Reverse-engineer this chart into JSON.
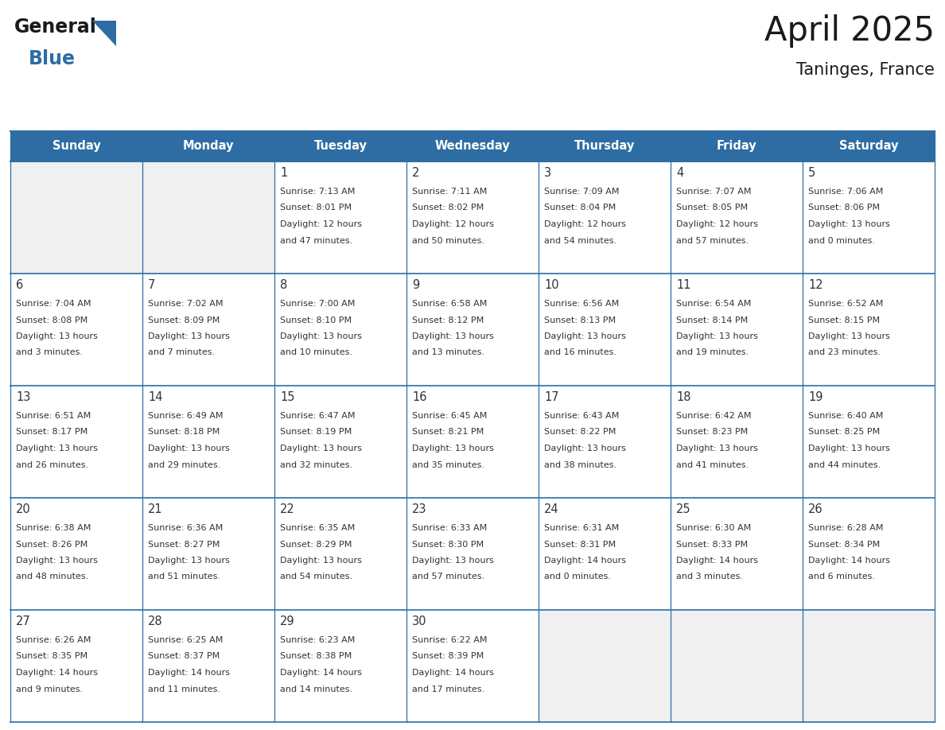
{
  "title": "April 2025",
  "subtitle": "Taninges, France",
  "header_bg_color": "#2E6DA4",
  "header_text_color": "#FFFFFF",
  "cell_bg_color": "#FFFFFF",
  "cell_bg_empty": "#F0F0F0",
  "grid_line_color": "#2E6DA4",
  "text_color": "#333333",
  "days_of_week": [
    "Sunday",
    "Monday",
    "Tuesday",
    "Wednesday",
    "Thursday",
    "Friday",
    "Saturday"
  ],
  "weeks": [
    [
      {
        "day": "",
        "sunrise": "",
        "sunset": "",
        "daylight": ""
      },
      {
        "day": "",
        "sunrise": "",
        "sunset": "",
        "daylight": ""
      },
      {
        "day": "1",
        "sunrise": "7:13 AM",
        "sunset": "8:01 PM",
        "daylight": "12 hours\nand 47 minutes."
      },
      {
        "day": "2",
        "sunrise": "7:11 AM",
        "sunset": "8:02 PM",
        "daylight": "12 hours\nand 50 minutes."
      },
      {
        "day": "3",
        "sunrise": "7:09 AM",
        "sunset": "8:04 PM",
        "daylight": "12 hours\nand 54 minutes."
      },
      {
        "day": "4",
        "sunrise": "7:07 AM",
        "sunset": "8:05 PM",
        "daylight": "12 hours\nand 57 minutes."
      },
      {
        "day": "5",
        "sunrise": "7:06 AM",
        "sunset": "8:06 PM",
        "daylight": "13 hours\nand 0 minutes."
      }
    ],
    [
      {
        "day": "6",
        "sunrise": "7:04 AM",
        "sunset": "8:08 PM",
        "daylight": "13 hours\nand 3 minutes."
      },
      {
        "day": "7",
        "sunrise": "7:02 AM",
        "sunset": "8:09 PM",
        "daylight": "13 hours\nand 7 minutes."
      },
      {
        "day": "8",
        "sunrise": "7:00 AM",
        "sunset": "8:10 PM",
        "daylight": "13 hours\nand 10 minutes."
      },
      {
        "day": "9",
        "sunrise": "6:58 AM",
        "sunset": "8:12 PM",
        "daylight": "13 hours\nand 13 minutes."
      },
      {
        "day": "10",
        "sunrise": "6:56 AM",
        "sunset": "8:13 PM",
        "daylight": "13 hours\nand 16 minutes."
      },
      {
        "day": "11",
        "sunrise": "6:54 AM",
        "sunset": "8:14 PM",
        "daylight": "13 hours\nand 19 minutes."
      },
      {
        "day": "12",
        "sunrise": "6:52 AM",
        "sunset": "8:15 PM",
        "daylight": "13 hours\nand 23 minutes."
      }
    ],
    [
      {
        "day": "13",
        "sunrise": "6:51 AM",
        "sunset": "8:17 PM",
        "daylight": "13 hours\nand 26 minutes."
      },
      {
        "day": "14",
        "sunrise": "6:49 AM",
        "sunset": "8:18 PM",
        "daylight": "13 hours\nand 29 minutes."
      },
      {
        "day": "15",
        "sunrise": "6:47 AM",
        "sunset": "8:19 PM",
        "daylight": "13 hours\nand 32 minutes."
      },
      {
        "day": "16",
        "sunrise": "6:45 AM",
        "sunset": "8:21 PM",
        "daylight": "13 hours\nand 35 minutes."
      },
      {
        "day": "17",
        "sunrise": "6:43 AM",
        "sunset": "8:22 PM",
        "daylight": "13 hours\nand 38 minutes."
      },
      {
        "day": "18",
        "sunrise": "6:42 AM",
        "sunset": "8:23 PM",
        "daylight": "13 hours\nand 41 minutes."
      },
      {
        "day": "19",
        "sunrise": "6:40 AM",
        "sunset": "8:25 PM",
        "daylight": "13 hours\nand 44 minutes."
      }
    ],
    [
      {
        "day": "20",
        "sunrise": "6:38 AM",
        "sunset": "8:26 PM",
        "daylight": "13 hours\nand 48 minutes."
      },
      {
        "day": "21",
        "sunrise": "6:36 AM",
        "sunset": "8:27 PM",
        "daylight": "13 hours\nand 51 minutes."
      },
      {
        "day": "22",
        "sunrise": "6:35 AM",
        "sunset": "8:29 PM",
        "daylight": "13 hours\nand 54 minutes."
      },
      {
        "day": "23",
        "sunrise": "6:33 AM",
        "sunset": "8:30 PM",
        "daylight": "13 hours\nand 57 minutes."
      },
      {
        "day": "24",
        "sunrise": "6:31 AM",
        "sunset": "8:31 PM",
        "daylight": "14 hours\nand 0 minutes."
      },
      {
        "day": "25",
        "sunrise": "6:30 AM",
        "sunset": "8:33 PM",
        "daylight": "14 hours\nand 3 minutes."
      },
      {
        "day": "26",
        "sunrise": "6:28 AM",
        "sunset": "8:34 PM",
        "daylight": "14 hours\nand 6 minutes."
      }
    ],
    [
      {
        "day": "27",
        "sunrise": "6:26 AM",
        "sunset": "8:35 PM",
        "daylight": "14 hours\nand 9 minutes."
      },
      {
        "day": "28",
        "sunrise": "6:25 AM",
        "sunset": "8:37 PM",
        "daylight": "14 hours\nand 11 minutes."
      },
      {
        "day": "29",
        "sunrise": "6:23 AM",
        "sunset": "8:38 PM",
        "daylight": "14 hours\nand 14 minutes."
      },
      {
        "day": "30",
        "sunrise": "6:22 AM",
        "sunset": "8:39 PM",
        "daylight": "14 hours\nand 17 minutes."
      },
      {
        "day": "",
        "sunrise": "",
        "sunset": "",
        "daylight": ""
      },
      {
        "day": "",
        "sunrise": "",
        "sunset": "",
        "daylight": ""
      },
      {
        "day": "",
        "sunrise": "",
        "sunset": "",
        "daylight": ""
      }
    ]
  ],
  "logo_color_general": "#1a1a1a",
  "logo_color_blue": "#2E6DA4",
  "logo_triangle_color": "#2E6DA4",
  "fig_width": 11.88,
  "fig_height": 9.18,
  "dpi": 100
}
